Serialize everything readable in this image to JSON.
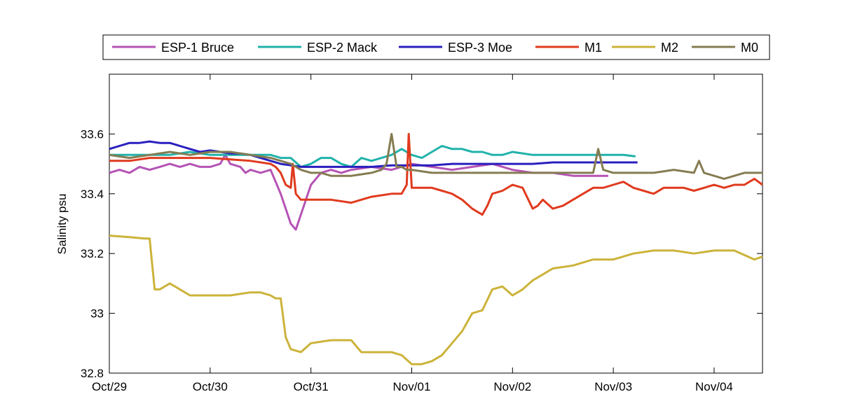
{
  "chart_data": {
    "type": "line",
    "title": "",
    "xlabel": "",
    "ylabel": "Salinity psu",
    "xlim": [
      0,
      6.48
    ],
    "ylim": [
      32.8,
      33.8
    ],
    "x_ticks": [
      {
        "x": 0,
        "label": "Oct/29"
      },
      {
        "x": 1,
        "label": "Oct/30"
      },
      {
        "x": 2,
        "label": "Oct/31"
      },
      {
        "x": 3,
        "label": "Nov/01"
      },
      {
        "x": 4,
        "label": "Nov/02"
      },
      {
        "x": 5,
        "label": "Nov/03"
      },
      {
        "x": 6,
        "label": "Nov/04"
      }
    ],
    "y_ticks": [
      {
        "y": 32.8,
        "label": "32.8"
      },
      {
        "y": 33.0,
        "label": "33"
      },
      {
        "y": 33.2,
        "label": "33.2"
      },
      {
        "y": 33.4,
        "label": "33.4"
      },
      {
        "y": 33.6,
        "label": "33.6"
      }
    ],
    "grid": false,
    "legend_position": "top",
    "series": [
      {
        "name": "ESP-1 Bruce",
        "color": "#b553b5",
        "x": [
          0,
          0.1,
          0.2,
          0.3,
          0.4,
          0.5,
          0.6,
          0.7,
          0.8,
          0.9,
          1.0,
          1.1,
          1.15,
          1.2,
          1.3,
          1.35,
          1.4,
          1.5,
          1.6,
          1.65,
          1.7,
          1.75,
          1.8,
          1.85,
          1.9,
          1.95,
          2.0,
          2.1,
          2.2,
          2.3,
          2.4,
          2.6,
          2.8,
          3.0,
          3.2,
          3.4,
          3.6,
          3.8,
          4.0,
          4.2,
          4.4,
          4.6,
          4.8,
          4.95
        ],
        "y": [
          33.47,
          33.48,
          33.47,
          33.49,
          33.48,
          33.49,
          33.5,
          33.49,
          33.5,
          33.49,
          33.49,
          33.5,
          33.53,
          33.5,
          33.49,
          33.47,
          33.48,
          33.47,
          33.48,
          33.44,
          33.4,
          33.35,
          33.3,
          33.28,
          33.33,
          33.38,
          33.43,
          33.47,
          33.48,
          33.47,
          33.48,
          33.49,
          33.48,
          33.5,
          33.49,
          33.48,
          33.49,
          33.5,
          33.48,
          33.47,
          33.47,
          33.46,
          33.46,
          33.46
        ]
      },
      {
        "name": "ESP-2 Mack",
        "color": "#20b2aa",
        "x": [
          0,
          0.2,
          0.4,
          0.6,
          0.8,
          1.0,
          1.2,
          1.4,
          1.6,
          1.7,
          1.8,
          1.9,
          2.0,
          2.1,
          2.2,
          2.3,
          2.4,
          2.5,
          2.6,
          2.7,
          2.8,
          2.9,
          3.0,
          3.1,
          3.2,
          3.3,
          3.4,
          3.5,
          3.6,
          3.7,
          3.8,
          3.9,
          4.0,
          4.2,
          4.4,
          4.6,
          4.8,
          5.0,
          5.1,
          5.22
        ],
        "y": [
          33.53,
          33.53,
          33.53,
          33.53,
          33.54,
          33.53,
          33.53,
          33.53,
          33.53,
          33.52,
          33.52,
          33.49,
          33.5,
          33.52,
          33.52,
          33.5,
          33.49,
          33.52,
          33.51,
          33.52,
          33.53,
          33.55,
          33.53,
          33.52,
          33.54,
          33.56,
          33.55,
          33.55,
          33.54,
          33.54,
          33.53,
          33.53,
          33.54,
          33.53,
          33.53,
          33.53,
          33.53,
          33.53,
          33.53,
          33.525
        ]
      },
      {
        "name": "ESP-3 Moe",
        "color": "#2a1fbf",
        "x": [
          0,
          0.1,
          0.2,
          0.3,
          0.4,
          0.5,
          0.6,
          0.7,
          0.8,
          0.9,
          1.0,
          1.1,
          1.2,
          1.3,
          1.4,
          1.5,
          1.6,
          1.7,
          1.8,
          1.9,
          2.0,
          2.2,
          2.4,
          2.6,
          2.8,
          3.0,
          3.2,
          3.4,
          3.6,
          3.8,
          4.0,
          4.2,
          4.4,
          4.6,
          4.8,
          5.0,
          5.1,
          5.24
        ],
        "y": [
          33.55,
          33.56,
          33.57,
          33.57,
          33.575,
          33.57,
          33.57,
          33.56,
          33.55,
          33.54,
          33.545,
          33.54,
          33.535,
          33.535,
          33.53,
          33.52,
          33.51,
          33.5,
          33.495,
          33.49,
          33.49,
          33.49,
          33.49,
          33.49,
          33.495,
          33.495,
          33.495,
          33.5,
          33.5,
          33.5,
          33.5,
          33.5,
          33.505,
          33.505,
          33.505,
          33.505,
          33.505,
          33.505
        ]
      },
      {
        "name": "M1",
        "color": "#e03a1e",
        "x": [
          0,
          0.2,
          0.4,
          0.6,
          0.8,
          1.0,
          1.2,
          1.4,
          1.6,
          1.65,
          1.7,
          1.75,
          1.8,
          1.82,
          1.85,
          1.9,
          2.0,
          2.2,
          2.4,
          2.6,
          2.8,
          2.9,
          2.95,
          2.97,
          3.0,
          3.1,
          3.2,
          3.3,
          3.4,
          3.5,
          3.6,
          3.65,
          3.7,
          3.75,
          3.8,
          3.9,
          4.0,
          4.1,
          4.2,
          4.25,
          4.3,
          4.4,
          4.5,
          4.6,
          4.7,
          4.8,
          4.9,
          5.0,
          5.1,
          5.2,
          5.3,
          5.4,
          5.5,
          5.6,
          5.7,
          5.8,
          5.9,
          6.0,
          6.1,
          6.2,
          6.3,
          6.4,
          6.48
        ],
        "y": [
          33.51,
          33.51,
          33.52,
          33.52,
          33.52,
          33.52,
          33.515,
          33.51,
          33.5,
          33.49,
          33.47,
          33.43,
          33.42,
          33.5,
          33.4,
          33.38,
          33.38,
          33.38,
          33.37,
          33.39,
          33.4,
          33.4,
          33.43,
          33.6,
          33.42,
          33.42,
          33.42,
          33.41,
          33.4,
          33.38,
          33.35,
          33.34,
          33.33,
          33.36,
          33.4,
          33.41,
          33.43,
          33.42,
          33.35,
          33.36,
          33.38,
          33.35,
          33.36,
          33.38,
          33.4,
          33.42,
          33.42,
          33.43,
          33.44,
          33.42,
          33.41,
          33.4,
          33.42,
          33.42,
          33.42,
          33.41,
          33.42,
          33.43,
          33.42,
          33.43,
          33.43,
          33.45,
          33.43
        ]
      },
      {
        "name": "M2",
        "color": "#ccb33a",
        "x": [
          0,
          0.2,
          0.35,
          0.4,
          0.45,
          0.5,
          0.6,
          0.7,
          0.8,
          1.0,
          1.2,
          1.4,
          1.5,
          1.6,
          1.65,
          1.7,
          1.75,
          1.8,
          1.9,
          2.0,
          2.2,
          2.4,
          2.5,
          2.6,
          2.8,
          2.9,
          3.0,
          3.1,
          3.2,
          3.3,
          3.4,
          3.5,
          3.6,
          3.7,
          3.8,
          3.9,
          4.0,
          4.1,
          4.2,
          4.3,
          4.4,
          4.6,
          4.8,
          5.0,
          5.2,
          5.4,
          5.6,
          5.8,
          6.0,
          6.2,
          6.4,
          6.48
        ],
        "y": [
          33.26,
          33.255,
          33.25,
          33.25,
          33.08,
          33.08,
          33.1,
          33.08,
          33.06,
          33.06,
          33.06,
          33.07,
          33.07,
          33.06,
          33.05,
          33.05,
          32.92,
          32.88,
          32.87,
          32.9,
          32.91,
          32.91,
          32.87,
          32.87,
          32.87,
          32.86,
          32.83,
          32.83,
          32.84,
          32.86,
          32.9,
          32.94,
          33.0,
          33.01,
          33.08,
          33.09,
          33.06,
          33.08,
          33.11,
          33.13,
          33.15,
          33.16,
          33.18,
          33.18,
          33.2,
          33.21,
          33.21,
          33.2,
          33.21,
          33.21,
          33.18,
          33.19
        ]
      },
      {
        "name": "M0",
        "color": "#857c52",
        "x": [
          0,
          0.2,
          0.4,
          0.6,
          0.8,
          1.0,
          1.2,
          1.4,
          1.6,
          1.7,
          1.8,
          1.9,
          2.0,
          2.1,
          2.2,
          2.4,
          2.6,
          2.7,
          2.75,
          2.8,
          2.85,
          2.9,
          2.95,
          3.0,
          3.2,
          3.4,
          3.6,
          3.8,
          4.0,
          4.2,
          4.4,
          4.6,
          4.8,
          4.85,
          4.9,
          5.0,
          5.2,
          5.4,
          5.6,
          5.8,
          5.85,
          5.9,
          6.0,
          6.1,
          6.2,
          6.3,
          6.4,
          6.48
        ],
        "y": [
          33.53,
          33.52,
          33.53,
          33.54,
          33.53,
          33.54,
          33.54,
          33.53,
          33.52,
          33.51,
          33.5,
          33.48,
          33.47,
          33.47,
          33.46,
          33.46,
          33.47,
          33.48,
          33.5,
          33.6,
          33.49,
          33.49,
          33.48,
          33.48,
          33.47,
          33.47,
          33.47,
          33.47,
          33.47,
          33.47,
          33.47,
          33.47,
          33.47,
          33.55,
          33.48,
          33.47,
          33.47,
          33.47,
          33.48,
          33.47,
          33.51,
          33.47,
          33.46,
          33.45,
          33.46,
          33.47,
          33.47,
          33.47
        ]
      }
    ]
  }
}
